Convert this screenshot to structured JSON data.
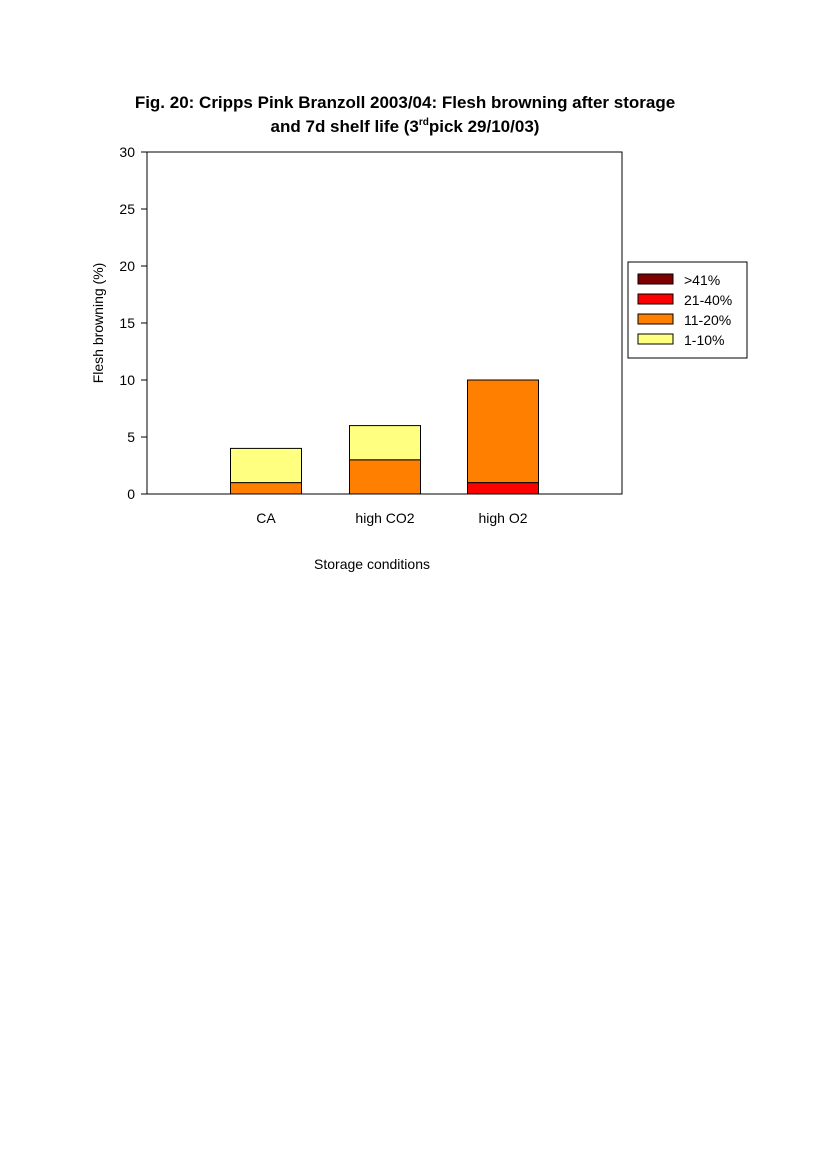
{
  "chart_data": {
    "type": "bar",
    "stacked": true,
    "title_line1": "Fig. 20: Cripps Pink Branzoll 2003/04: Flesh browning after storage",
    "title_line2_prefix": "and 7d shelf life (3",
    "title_line2_sup": "rd",
    "title_line2_suffix": "pick 29/10/03)",
    "xlabel": "Storage conditions",
    "ylabel": "Flesh browning (%)",
    "ylim": [
      0,
      30
    ],
    "yticks": [
      "0",
      "5",
      "10",
      "15",
      "20",
      "25",
      "30"
    ],
    "categories": [
      "CA",
      "high CO2",
      "high O2"
    ],
    "series": [
      {
        "name": "21-40%",
        "color": "#ff0000",
        "values": [
          0,
          0,
          1
        ]
      },
      {
        "name": "11-20%",
        "color": "#ff8000",
        "values": [
          1,
          3,
          9
        ]
      },
      {
        "name": "1-10%",
        "color": "#ffff80",
        "values": [
          3,
          3,
          0
        ]
      },
      {
        "name": ">41%",
        "color": "#800000",
        "values": [
          0,
          0,
          0
        ]
      }
    ],
    "legend": {
      "position": "right",
      "entries": [
        {
          "label": ">41%",
          "color": "#800000"
        },
        {
          "label": "21-40%",
          "color": "#ff0000"
        },
        {
          "label": "11-20%",
          "color": "#ff8000"
        },
        {
          "label": "1-10%",
          "color": "#ffff80"
        }
      ]
    },
    "grid": false
  }
}
